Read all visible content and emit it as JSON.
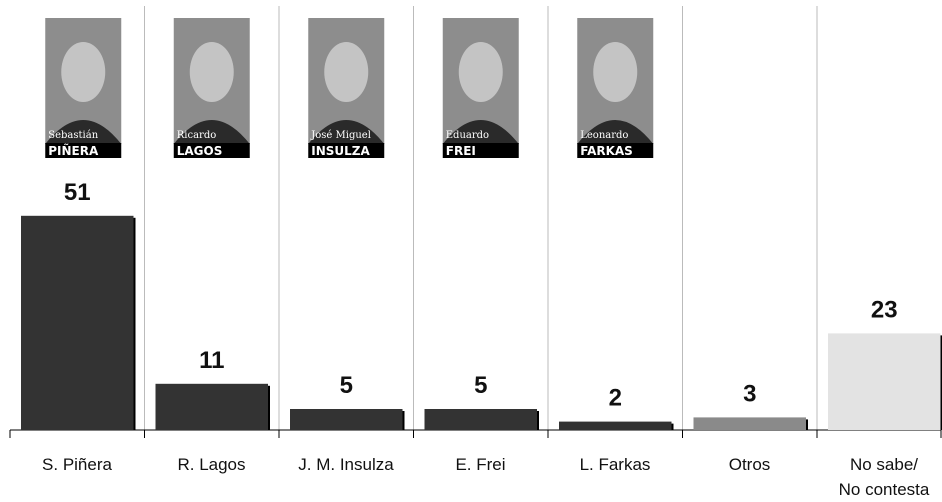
{
  "chart_data": {
    "type": "bar",
    "categories": [
      "S. Piñera",
      "R. Lagos",
      "J. M. Insulza",
      "E. Frei",
      "L. Farkas",
      "Otros",
      "No sabe/\nNo contesta"
    ],
    "values": [
      51,
      11,
      5,
      5,
      2,
      3,
      23
    ],
    "colors": [
      "#333333",
      "#333333",
      "#333333",
      "#333333",
      "#333333",
      "#8a8a8a",
      "#e3e3e3"
    ],
    "ylim": [
      0,
      100
    ],
    "photo_captions": [
      {
        "first": "Sebastián",
        "last": "PIÑERA"
      },
      {
        "first": "Ricardo",
        "last": "LAGOS"
      },
      {
        "first": "José Miguel",
        "last": "INSULZA"
      },
      {
        "first": "Eduardo",
        "last": "FREI"
      },
      {
        "first": "Leonardo",
        "last": "FARKAS"
      }
    ]
  }
}
